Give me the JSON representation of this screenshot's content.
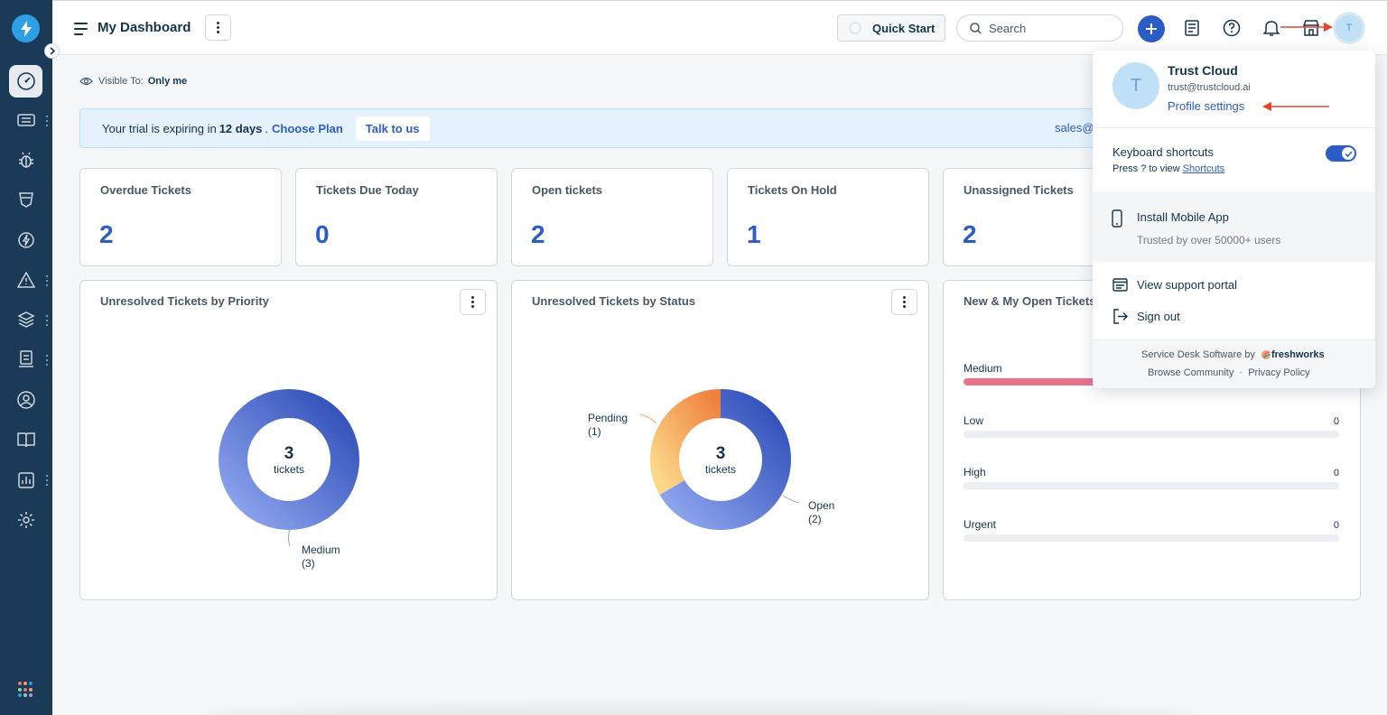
{
  "header": {
    "title": "My Dashboard",
    "quick_start": "Quick Start",
    "search_placeholder": "Search",
    "avatar_initial": "T"
  },
  "visibility": {
    "label": "Visible To:",
    "value": "Only me"
  },
  "trial": {
    "prefix": "Your trial is expiring in",
    "days": "12 days",
    "period": ".",
    "choose_plan": "Choose Plan",
    "talk_to_us": "Talk to us",
    "sales_email_partial": "sales@"
  },
  "stats": [
    {
      "label": "Overdue Tickets",
      "value": "2"
    },
    {
      "label": "Tickets Due Today",
      "value": "0"
    },
    {
      "label": "Open tickets",
      "value": "2"
    },
    {
      "label": "Tickets On Hold",
      "value": "1"
    },
    {
      "label": "Unassigned Tickets",
      "value": "2"
    }
  ],
  "widgets": {
    "priority": {
      "title": "Unresolved Tickets by Priority",
      "center_count": "3",
      "center_unit": "tickets",
      "segments": [
        {
          "name": "Medium",
          "count": 3,
          "label_count": "(3)",
          "color": "#3d5bc4"
        }
      ]
    },
    "status": {
      "title": "Unresolved Tickets by Status",
      "center_count": "3",
      "center_unit": "tickets",
      "segments": [
        {
          "name": "Open",
          "count": 2,
          "label_count": "(2)",
          "color": "#3d5bc4"
        },
        {
          "name": "Pending",
          "count": 1,
          "label_count": "(1)",
          "color": "#f5a653"
        }
      ]
    },
    "my_open": {
      "title": "New & My Open Tickets",
      "rows": [
        {
          "name": "Medium",
          "count": "",
          "fraction": 1
        },
        {
          "name": "Low",
          "count": "0",
          "fraction": 0
        },
        {
          "name": "High",
          "count": "0",
          "fraction": 0
        },
        {
          "name": "Urgent",
          "count": "0",
          "fraction": 0
        }
      ]
    }
  },
  "profile_menu": {
    "avatar_initial": "T",
    "name": "Trust Cloud",
    "email": "trust@trustcloud.ai",
    "profile_settings": "Profile settings",
    "keyboard_shortcuts": "Keyboard shortcuts",
    "shortcuts_hint": "Press ? to view",
    "shortcuts_link": "Shortcuts",
    "shortcuts_enabled": true,
    "install_app": "Install Mobile App",
    "install_sub": "Trusted by over 50000+ users",
    "view_portal": "View support portal",
    "sign_out": "Sign out",
    "footer_prefix": "Service Desk Software by",
    "footer_brand": "freshworks",
    "browse_community": "Browse Community",
    "privacy_policy": "Privacy Policy"
  },
  "colors": {
    "sidebar_bg": "#1b3a57",
    "primary": "#2c5cc5",
    "annotation_arrow": "#e5432d",
    "medium_bar": "#e8748c"
  },
  "sidebar_icons": [
    "dashboard-icon",
    "tickets-icon",
    "problems-icon",
    "changes-icon",
    "releases-icon",
    "alerts-icon",
    "assets-icon",
    "contracts-icon",
    "contacts-icon",
    "solutions-icon",
    "reports-icon",
    "admin-icon",
    "apps-grid-icon"
  ]
}
